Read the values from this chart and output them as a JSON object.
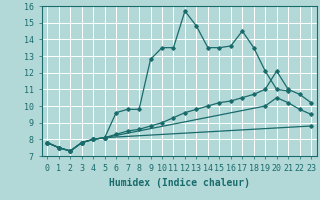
{
  "background_color": "#b2d8d8",
  "grid_color": "#ffffff",
  "line_color": "#1a6b6b",
  "lines_data": [
    {
      "x": [
        0,
        1,
        2,
        3,
        4,
        5,
        6,
        7,
        8,
        9,
        10,
        11,
        12,
        13,
        14,
        15,
        16,
        17,
        18,
        19,
        20,
        21
      ],
      "y": [
        7.8,
        7.5,
        7.3,
        7.8,
        8.0,
        8.1,
        9.6,
        9.8,
        9.8,
        12.8,
        13.5,
        13.5,
        15.7,
        14.8,
        13.5,
        13.5,
        13.6,
        14.5,
        13.5,
        12.1,
        11.0,
        10.9
      ]
    },
    {
      "x": [
        0,
        1,
        2,
        3,
        4,
        5,
        6,
        7,
        8,
        9,
        10,
        11,
        12,
        13,
        14,
        15,
        16,
        17,
        18,
        19,
        20,
        21,
        22,
        23
      ],
      "y": [
        7.8,
        7.5,
        7.3,
        7.8,
        8.0,
        8.1,
        8.3,
        8.5,
        8.6,
        8.8,
        9.0,
        9.3,
        9.6,
        9.8,
        10.0,
        10.2,
        10.3,
        10.5,
        10.7,
        11.0,
        12.1,
        11.0,
        10.7,
        10.2
      ]
    },
    {
      "x": [
        0,
        1,
        2,
        3,
        4,
        5,
        19,
        20,
        21,
        22,
        23
      ],
      "y": [
        7.8,
        7.5,
        7.3,
        7.8,
        8.0,
        8.1,
        10.0,
        10.5,
        10.2,
        9.8,
        9.5
      ]
    },
    {
      "x": [
        0,
        1,
        2,
        3,
        4,
        5,
        23
      ],
      "y": [
        7.8,
        7.5,
        7.3,
        7.8,
        8.0,
        8.1,
        8.8
      ]
    }
  ],
  "xlabel": "Humidex (Indice chaleur)",
  "xlim": [
    -0.5,
    23.5
  ],
  "ylim": [
    7,
    16
  ],
  "xticks": [
    0,
    1,
    2,
    3,
    4,
    5,
    6,
    7,
    8,
    9,
    10,
    11,
    12,
    13,
    14,
    15,
    16,
    17,
    18,
    19,
    20,
    21,
    22,
    23
  ],
  "yticks": [
    7,
    8,
    9,
    10,
    11,
    12,
    13,
    14,
    15,
    16
  ],
  "xlabel_fontsize": 7,
  "tick_fontsize": 6
}
